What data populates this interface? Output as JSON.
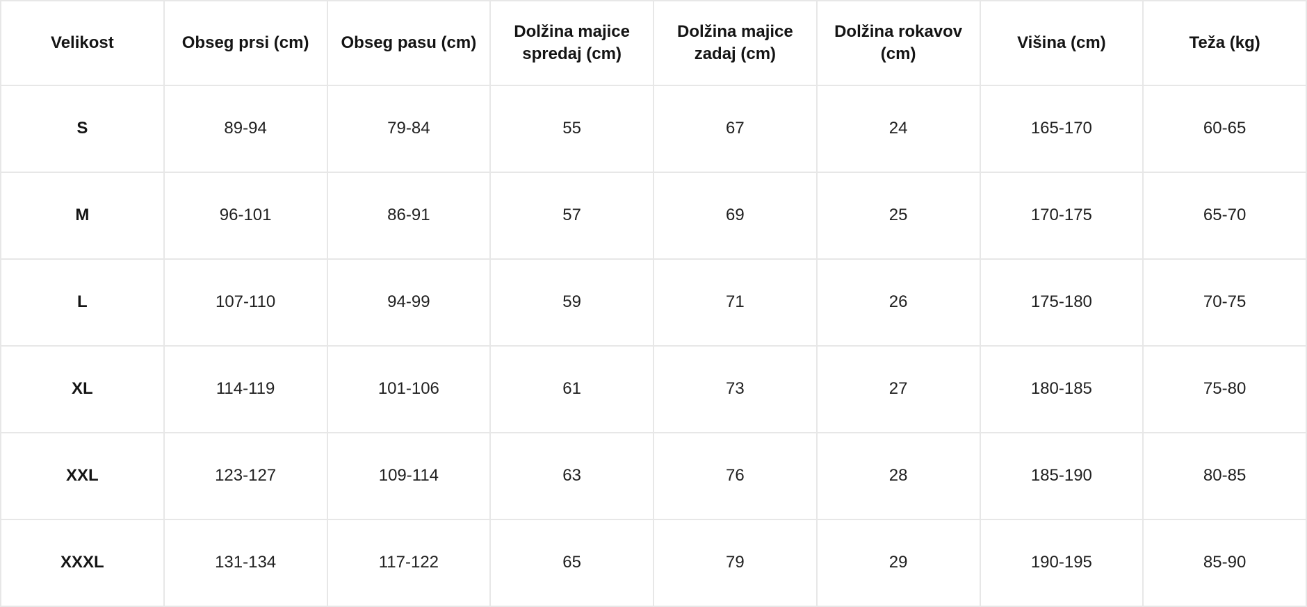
{
  "colors": {
    "background": "#ffffff",
    "border": "#e7e7e7",
    "header_text": "#141414",
    "cell_text": "#212121"
  },
  "table": {
    "headers": [
      "Velikost",
      "Obseg prsi (cm)",
      "Obseg pasu (cm)",
      "Dolžina majice spredaj (cm)",
      "Dolžina majice zadaj (cm)",
      "Dolžina rokavov (cm)",
      "Višina (cm)",
      "Teža (kg)"
    ],
    "rows": [
      {
        "size": "S",
        "values": [
          "89-94",
          "79-84",
          "55",
          "67",
          "24",
          "165-170",
          "60-65"
        ]
      },
      {
        "size": "M",
        "values": [
          "96-101",
          "86-91",
          "57",
          "69",
          "25",
          "170-175",
          "65-70"
        ]
      },
      {
        "size": "L",
        "values": [
          "107-110",
          "94-99",
          "59",
          "71",
          "26",
          "175-180",
          "70-75"
        ]
      },
      {
        "size": "XL",
        "values": [
          "114-119",
          "101-106",
          "61",
          "73",
          "27",
          "180-185",
          "75-80"
        ]
      },
      {
        "size": "XXL",
        "values": [
          "123-127",
          "109-114",
          "63",
          "76",
          "28",
          "185-190",
          "80-85"
        ]
      },
      {
        "size": "XXXL",
        "values": [
          "131-134",
          "117-122",
          "65",
          "79",
          "29",
          "190-195",
          "85-90"
        ]
      }
    ]
  },
  "chart_data": {
    "type": "table",
    "columns": [
      "Velikost",
      "Obseg prsi (cm)",
      "Obseg pasu (cm)",
      "Dolžina majice spredaj (cm)",
      "Dolžina majice zadaj (cm)",
      "Dolžina rokavov (cm)",
      "Višina (cm)",
      "Teža (kg)"
    ],
    "rows": [
      [
        "S",
        "89-94",
        "79-84",
        "55",
        "67",
        "24",
        "165-170",
        "60-65"
      ],
      [
        "M",
        "96-101",
        "86-91",
        "57",
        "69",
        "25",
        "170-175",
        "65-70"
      ],
      [
        "L",
        "107-110",
        "94-99",
        "59",
        "71",
        "26",
        "175-180",
        "70-75"
      ],
      [
        "XL",
        "114-119",
        "101-106",
        "61",
        "73",
        "27",
        "180-185",
        "75-80"
      ],
      [
        "XXL",
        "123-127",
        "109-114",
        "63",
        "76",
        "28",
        "185-190",
        "80-85"
      ],
      [
        "XXXL",
        "131-134",
        "117-122",
        "65",
        "79",
        "29",
        "190-195",
        "85-90"
      ]
    ]
  }
}
